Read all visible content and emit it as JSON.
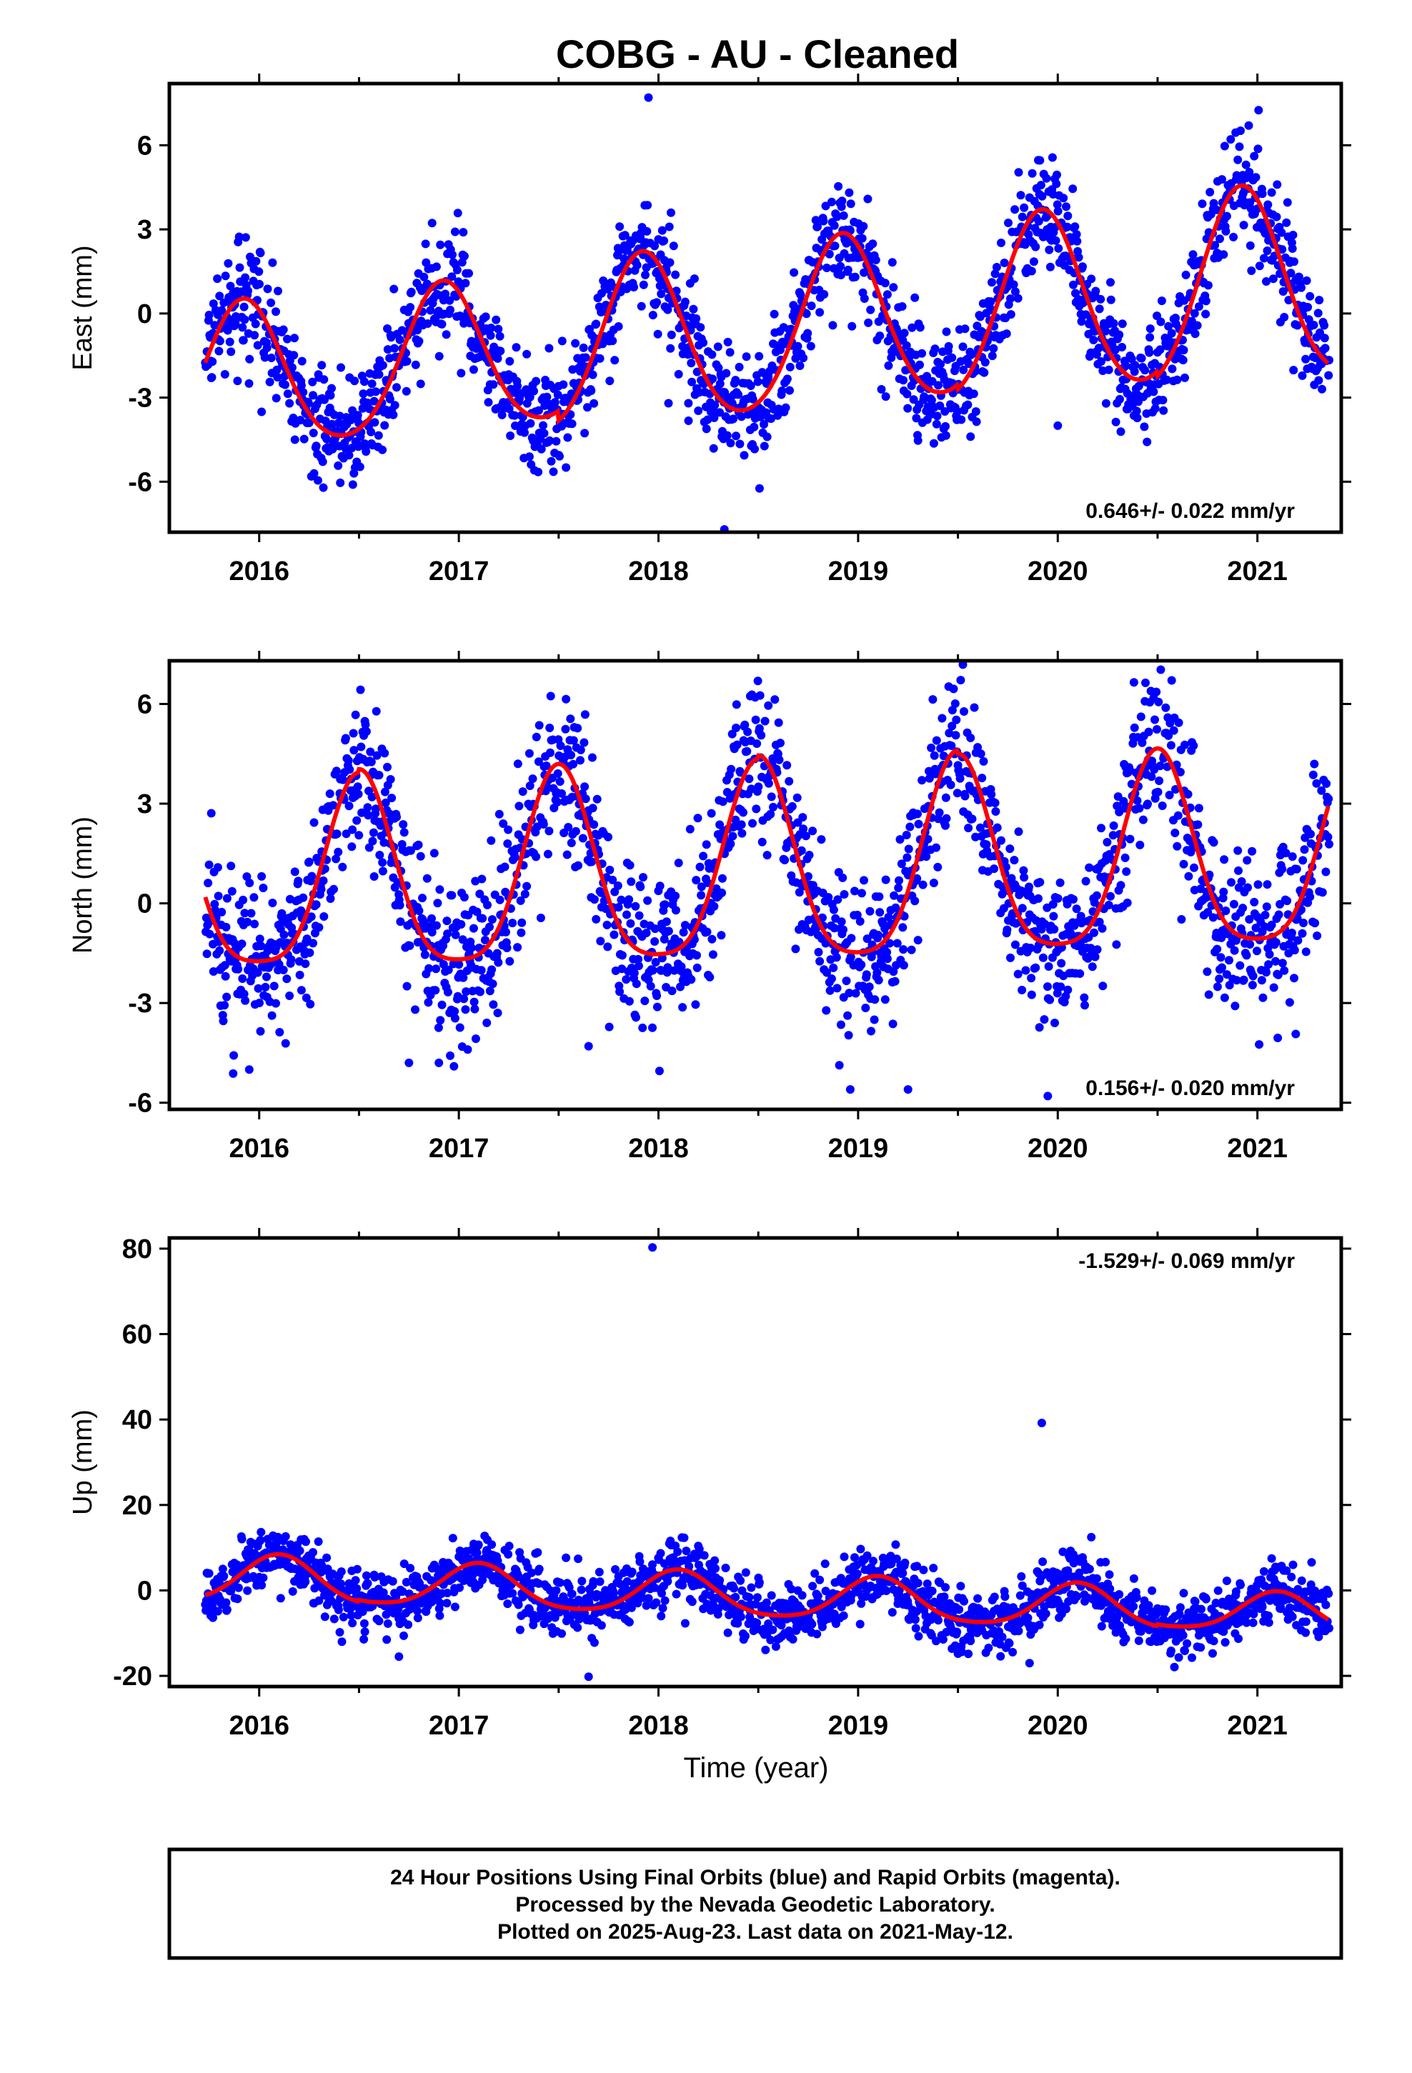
{
  "title": "COBG  - AU - Cleaned",
  "xlabel": "Time (year)",
  "footer": {
    "line1": "24 Hour Positions Using Final Orbits (blue) and Rapid Orbits (magenta).",
    "line2": "Processed by the Nevada Geodetic Laboratory.",
    "line3": "Plotted on 2025-Aug-23. Last data on 2021-May-12."
  },
  "colors": {
    "data": "#0000ff",
    "model": "#ff0000",
    "frame": "#000000"
  },
  "chart_data": [
    {
      "type": "scatter",
      "ylabel": "East (mm)",
      "rate_label": "0.646+/- 0.022 mm/yr",
      "xlim": [
        2015.55,
        2021.42
      ],
      "ylim": [
        -7.8,
        8.2
      ],
      "xticks": [
        2016,
        2017,
        2018,
        2019,
        2020,
        2021
      ],
      "yticks": [
        -6,
        -3,
        0,
        3,
        6
      ],
      "data_range": [
        2015.73,
        2021.36
      ],
      "model": {
        "offset": -0.7,
        "rate": 0.646,
        "ref_year": 2018.5,
        "annual_amp": [
          2.6,
          2.6,
          3.0,
          3.0,
          3.2,
          3.4
        ],
        "annual_phase_year": 2015.92,
        "semi_amp": 0.3
      },
      "scatter_sd": 1.0,
      "outliers": [
        [
          2018.33,
          -7.7
        ],
        [
          2018.05,
          -3.2
        ],
        [
          2018.15,
          -3.2
        ],
        [
          2020.0,
          -4.0
        ],
        [
          2017.95,
          7.7
        ]
      ]
    },
    {
      "type": "scatter",
      "ylabel": "North (mm)",
      "rate_label": "0.156+/- 0.020 mm/yr",
      "xlim": [
        2015.55,
        2021.42
      ],
      "ylim": [
        -6.2,
        7.3
      ],
      "xticks": [
        2016,
        2017,
        2018,
        2019,
        2020,
        2021
      ],
      "yticks": [
        -6,
        -3,
        0,
        3,
        6
      ],
      "data_range": [
        2015.73,
        2021.36
      ],
      "model": {
        "offset": 0.85,
        "rate": 0.156,
        "ref_year": 2018.5,
        "annual_amp": [
          2.8,
          2.9,
          2.9,
          3.0,
          2.9,
          2.9
        ],
        "annual_phase_year": 2016.5,
        "semi_amp": 0.6
      },
      "scatter_sd": 1.2,
      "outliers": [
        [
          2015.95,
          -5.0
        ],
        [
          2017.65,
          -4.3
        ],
        [
          2019.25,
          -5.6
        ],
        [
          2019.95,
          -5.8
        ],
        [
          2016.9,
          -4.8
        ],
        [
          2016.75,
          -4.8
        ]
      ]
    },
    {
      "type": "scatter",
      "ylabel": "Up (mm)",
      "rate_label": "-1.529+/- 0.069 mm/yr",
      "xlim": [
        2015.55,
        2021.42
      ],
      "ylim": [
        -22.5,
        82.5
      ],
      "xticks": [
        2016,
        2017,
        2018,
        2019,
        2020,
        2021
      ],
      "yticks": [
        -20,
        0,
        20,
        40,
        60,
        80
      ],
      "data_range": [
        2015.73,
        2021.36
      ],
      "model": {
        "offset": -1.5,
        "rate": -1.529,
        "ref_year": 2018.5,
        "annual_amp": [
          5.5,
          5.0,
          5.0,
          5.0,
          5.0,
          4.5
        ],
        "annual_phase_year": 2016.1,
        "semi_amp": 0.8
      },
      "scatter_sd": 3.6,
      "outliers": [
        [
          2017.97,
          80.3
        ],
        [
          2019.92,
          39.2
        ],
        [
          2016.7,
          -15.5
        ],
        [
          2017.65,
          -20.2
        ]
      ]
    }
  ]
}
